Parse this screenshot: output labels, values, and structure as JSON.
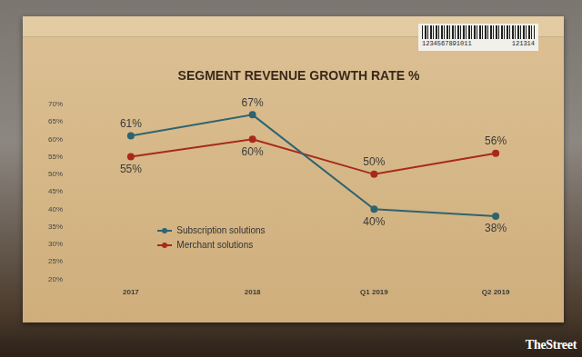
{
  "chart_data": {
    "type": "line",
    "title": "SEGMENT REVENUE GROWTH RATE %",
    "categories": [
      "2017",
      "2018",
      "Q1 2019",
      "Q2 2019"
    ],
    "series": [
      {
        "name": "Subscription solutions",
        "color": "#2e6470",
        "values": [
          61,
          67,
          40,
          38
        ],
        "value_labels": [
          "61%",
          "67%",
          "40%",
          "38%"
        ]
      },
      {
        "name": "Merchant solutions",
        "color": "#a8291c",
        "values": [
          55,
          60,
          50,
          56
        ],
        "value_labels": [
          "55%",
          "60%",
          "50%",
          "56%"
        ]
      }
    ],
    "ylim": [
      20,
      70
    ],
    "yticks": [
      {
        "value": 20,
        "label": "20%"
      },
      {
        "value": 25,
        "label": "25%"
      },
      {
        "value": 30,
        "label": "30%"
      },
      {
        "value": 35,
        "label": "35%"
      },
      {
        "value": 40,
        "label": "40%"
      },
      {
        "value": 45,
        "label": "45%"
      },
      {
        "value": 50,
        "label": "50%"
      },
      {
        "value": 55,
        "label": "55%"
      },
      {
        "value": 60,
        "label": "60%"
      },
      {
        "value": 65,
        "label": "65%"
      },
      {
        "value": 70,
        "label": "70%"
      }
    ],
    "grid": false,
    "legend": "lower left",
    "data_labels": true,
    "marker": "circle",
    "annotations": [
      "1234567891011",
      "121314",
      "TheStreet"
    ]
  }
}
